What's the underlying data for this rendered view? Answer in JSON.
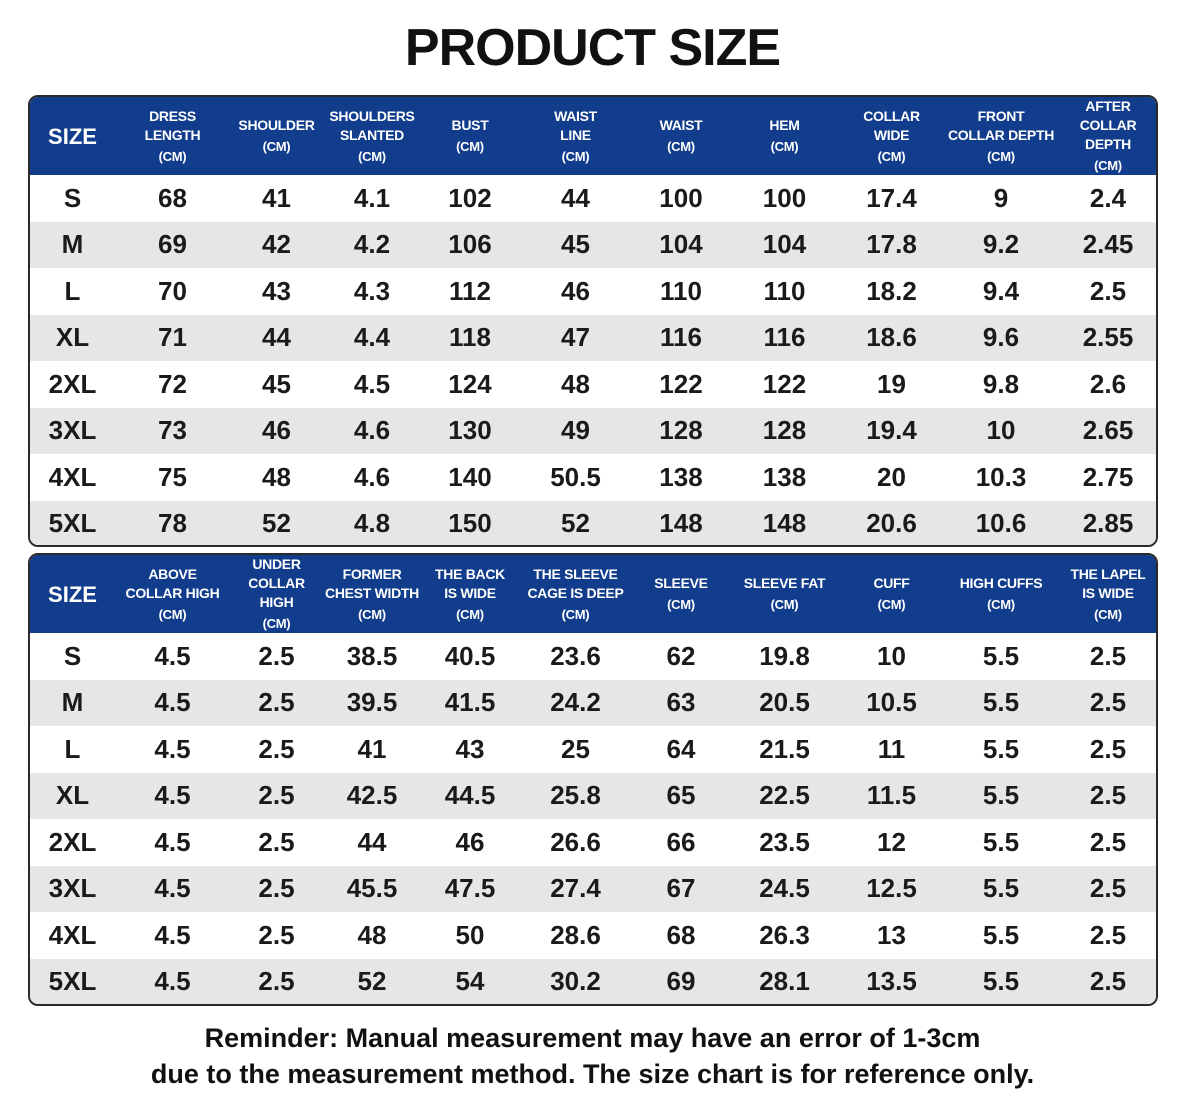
{
  "title": "PRODUCT SIZE",
  "tables": [
    {
      "headers": [
        {
          "label": "SIZE",
          "unit": ""
        },
        {
          "label": "DRESS\nLENGTH",
          "unit": "(CM)"
        },
        {
          "label": "SHOULDER",
          "unit": "(CM)"
        },
        {
          "label": "SHOULDERS\nSLANTED",
          "unit": "(CM)"
        },
        {
          "label": "BUST",
          "unit": "(CM)"
        },
        {
          "label": "WAIST\nLINE",
          "unit": "(CM)"
        },
        {
          "label": "WAIST",
          "unit": "(CM)"
        },
        {
          "label": "HEM",
          "unit": "(CM)"
        },
        {
          "label": "COLLAR\nWIDE",
          "unit": "(CM)"
        },
        {
          "label": "FRONT\nCOLLAR DEPTH",
          "unit": "(CM)"
        },
        {
          "label": "AFTER\nCOLLAR DEPTH",
          "unit": "(CM)"
        }
      ],
      "rows": [
        [
          "S",
          "68",
          "41",
          "4.1",
          "102",
          "44",
          "100",
          "100",
          "17.4",
          "9",
          "2.4"
        ],
        [
          "M",
          "69",
          "42",
          "4.2",
          "106",
          "45",
          "104",
          "104",
          "17.8",
          "9.2",
          "2.45"
        ],
        [
          "L",
          "70",
          "43",
          "4.3",
          "112",
          "46",
          "110",
          "110",
          "18.2",
          "9.4",
          "2.5"
        ],
        [
          "XL",
          "71",
          "44",
          "4.4",
          "118",
          "47",
          "116",
          "116",
          "18.6",
          "9.6",
          "2.55"
        ],
        [
          "2XL",
          "72",
          "45",
          "4.5",
          "124",
          "48",
          "122",
          "122",
          "19",
          "9.8",
          "2.6"
        ],
        [
          "3XL",
          "73",
          "46",
          "4.6",
          "130",
          "49",
          "128",
          "128",
          "19.4",
          "10",
          "2.65"
        ],
        [
          "4XL",
          "75",
          "48",
          "4.6",
          "140",
          "50.5",
          "138",
          "138",
          "20",
          "10.3",
          "2.75"
        ],
        [
          "5XL",
          "78",
          "52",
          "4.8",
          "150",
          "52",
          "148",
          "148",
          "20.6",
          "10.6",
          "2.85"
        ]
      ]
    },
    {
      "headers": [
        {
          "label": "SIZE",
          "unit": ""
        },
        {
          "label": "ABOVE\nCOLLAR HIGH",
          "unit": "(CM)"
        },
        {
          "label": "UNDER\nCOLLAR HIGH",
          "unit": "(CM)"
        },
        {
          "label": "FORMER\nCHEST WIDTH",
          "unit": "(CM)"
        },
        {
          "label": "THE BACK\nIS WIDE",
          "unit": "(CM)"
        },
        {
          "label": "THE SLEEVE\nCAGE IS DEEP",
          "unit": "(CM)"
        },
        {
          "label": "SLEEVE",
          "unit": "(CM)"
        },
        {
          "label": "SLEEVE FAT",
          "unit": "(CM)"
        },
        {
          "label": "CUFF",
          "unit": "(CM)"
        },
        {
          "label": "HIGH CUFFS",
          "unit": "(CM)"
        },
        {
          "label": "THE LAPEL\nIS WIDE",
          "unit": "(CM)"
        }
      ],
      "rows": [
        [
          "S",
          "4.5",
          "2.5",
          "38.5",
          "40.5",
          "23.6",
          "62",
          "19.8",
          "10",
          "5.5",
          "2.5"
        ],
        [
          "M",
          "4.5",
          "2.5",
          "39.5",
          "41.5",
          "24.2",
          "63",
          "20.5",
          "10.5",
          "5.5",
          "2.5"
        ],
        [
          "L",
          "4.5",
          "2.5",
          "41",
          "43",
          "25",
          "64",
          "21.5",
          "11",
          "5.5",
          "2.5"
        ],
        [
          "XL",
          "4.5",
          "2.5",
          "42.5",
          "44.5",
          "25.8",
          "65",
          "22.5",
          "11.5",
          "5.5",
          "2.5"
        ],
        [
          "2XL",
          "4.5",
          "2.5",
          "44",
          "46",
          "26.6",
          "66",
          "23.5",
          "12",
          "5.5",
          "2.5"
        ],
        [
          "3XL",
          "4.5",
          "2.5",
          "45.5",
          "47.5",
          "27.4",
          "67",
          "24.5",
          "12.5",
          "5.5",
          "2.5"
        ],
        [
          "4XL",
          "4.5",
          "2.5",
          "48",
          "50",
          "28.6",
          "68",
          "26.3",
          "13",
          "5.5",
          "2.5"
        ],
        [
          "5XL",
          "4.5",
          "2.5",
          "52",
          "54",
          "30.2",
          "69",
          "28.1",
          "13.5",
          "5.5",
          "2.5"
        ]
      ]
    }
  ],
  "reminder": {
    "line1": "Reminder: Manual measurement may have an error of 1-3cm",
    "line2": "due to the measurement method. The size chart is for reference only."
  },
  "colors": {
    "header_bg": "#123d8c",
    "header_text": "#ffffff",
    "stripe_bg": "#e6e6e6"
  }
}
